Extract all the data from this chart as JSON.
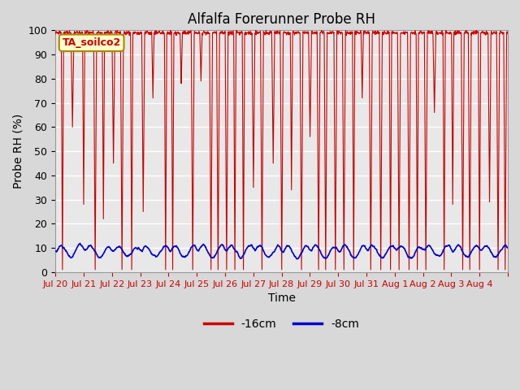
{
  "title": "Alfalfa Forerunner Probe RH",
  "xlabel": "Time",
  "ylabel": "Probe RH (%)",
  "ylim": [
    0,
    100
  ],
  "yticks": [
    0,
    10,
    20,
    30,
    40,
    50,
    60,
    70,
    80,
    90,
    100
  ],
  "bg_color": "#d8d8d8",
  "plot_bg_color": "#e8e8e8",
  "line1_color": "#cc0000",
  "line2_color": "#0000cc",
  "line1_label": "-16cm",
  "line2_label": "-8cm",
  "legend_label": "TA_soilco2",
  "legend_bg": "#ffffcc",
  "legend_edge": "#aa8800",
  "tick_labels": [
    "Jul 20",
    "Jul 21",
    "Jul 22",
    "Jul 23",
    "Jul 24",
    "Jul 25",
    "Jul 26",
    "Jul 27",
    "Jul 28",
    "Jul 29",
    "Jul 30",
    "Jul 31",
    "Aug 1",
    "Aug 2",
    "Aug 3",
    "Aug 4",
    ""
  ]
}
